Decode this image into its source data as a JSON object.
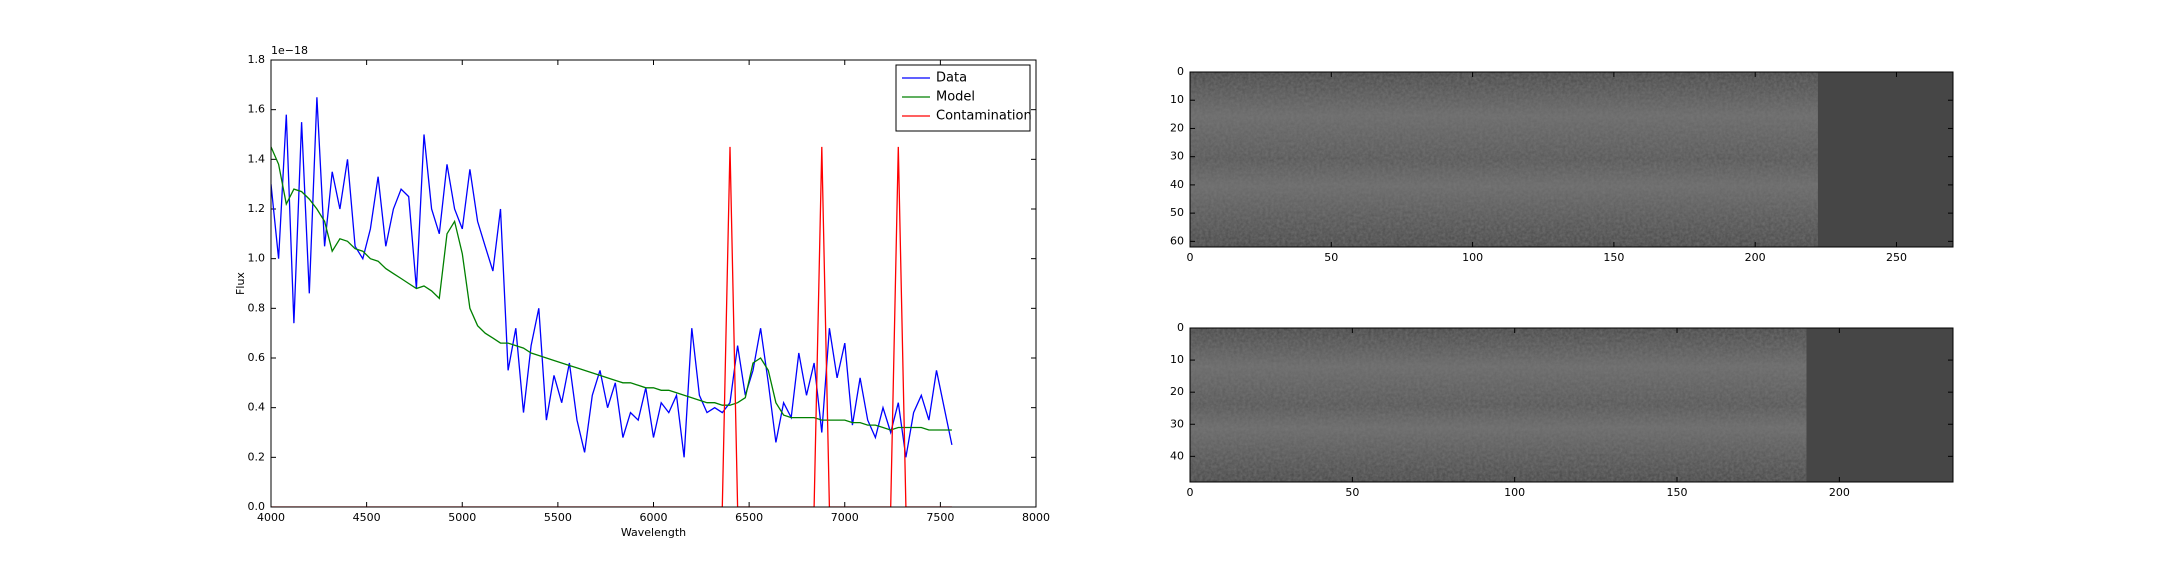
{
  "chart_data": [
    {
      "type": "line",
      "xlabel": "Wavelength",
      "ylabel": "Flux",
      "y_offset_text": "1e−18",
      "xlim": [
        4000,
        8000
      ],
      "xticks": [
        4000,
        4500,
        5000,
        5500,
        6000,
        6500,
        7000,
        7500,
        8000
      ],
      "ylim": [
        0,
        1.8
      ],
      "yticks": [
        {
          "value": 0,
          "label": "0.0"
        },
        {
          "value": 0.2,
          "label": "0.2"
        },
        {
          "value": 0.4,
          "label": "0.4"
        },
        {
          "value": 0.6,
          "label": "0.6"
        },
        {
          "value": 0.8,
          "label": "0.8"
        },
        {
          "value": 1,
          "label": "1.0"
        },
        {
          "value": 1.2,
          "label": "1.2"
        },
        {
          "value": 1.4,
          "label": "1.4"
        },
        {
          "value": 1.6,
          "label": "1.6"
        },
        {
          "value": 1.8,
          "label": "1.8"
        }
      ],
      "legend": "upper right",
      "x": [
        4000,
        4040,
        4080,
        4120,
        4160,
        4200,
        4240,
        4280,
        4320,
        4360,
        4400,
        4440,
        4480,
        4520,
        4560,
        4600,
        4640,
        4680,
        4720,
        4760,
        4800,
        4840,
        4880,
        4920,
        4960,
        5000,
        5040,
        5080,
        5120,
        5160,
        5200,
        5240,
        5280,
        5320,
        5360,
        5400,
        5440,
        5480,
        5520,
        5560,
        5600,
        5640,
        5680,
        5720,
        5760,
        5800,
        5840,
        5880,
        5920,
        5960,
        6000,
        6040,
        6080,
        6120,
        6160,
        6200,
        6240,
        6280,
        6320,
        6360,
        6400,
        6440,
        6480,
        6520,
        6560,
        6600,
        6640,
        6680,
        6720,
        6760,
        6800,
        6840,
        6880,
        6920,
        6960,
        7000,
        7040,
        7080,
        7120,
        7160,
        7200,
        7240,
        7280,
        7320,
        7360,
        7400,
        7440,
        7480,
        7520,
        7560
      ],
      "series": [
        {
          "name": "Data",
          "color": "#0000ff",
          "values": [
            1.3,
            1.0,
            1.58,
            0.74,
            1.55,
            0.86,
            1.65,
            1.05,
            1.35,
            1.2,
            1.4,
            1.05,
            1.0,
            1.12,
            1.33,
            1.05,
            1.2,
            1.28,
            1.25,
            0.88,
            1.5,
            1.2,
            1.1,
            1.38,
            1.2,
            1.12,
            1.36,
            1.15,
            1.05,
            0.95,
            1.2,
            0.55,
            0.72,
            0.38,
            0.65,
            0.8,
            0.35,
            0.53,
            0.42,
            0.58,
            0.35,
            0.22,
            0.45,
            0.55,
            0.4,
            0.5,
            0.28,
            0.38,
            0.35,
            0.48,
            0.28,
            0.42,
            0.38,
            0.45,
            0.2,
            0.72,
            0.45,
            0.38,
            0.4,
            0.38,
            0.42,
            0.65,
            0.45,
            0.55,
            0.72,
            0.5,
            0.26,
            0.42,
            0.36,
            0.62,
            0.45,
            0.58,
            0.3,
            0.72,
            0.52,
            0.66,
            0.33,
            0.52,
            0.35,
            0.28,
            0.4,
            0.3,
            0.42,
            0.2,
            0.38,
            0.45,
            0.35,
            0.55,
            0.4,
            0.25
          ]
        },
        {
          "name": "Model",
          "color": "#008000",
          "values": [
            1.45,
            1.38,
            1.22,
            1.28,
            1.27,
            1.24,
            1.2,
            1.15,
            1.03,
            1.08,
            1.07,
            1.04,
            1.03,
            1.0,
            0.99,
            0.96,
            0.94,
            0.92,
            0.9,
            0.88,
            0.89,
            0.87,
            0.84,
            1.1,
            1.15,
            1.02,
            0.8,
            0.73,
            0.7,
            0.68,
            0.66,
            0.66,
            0.65,
            0.64,
            0.62,
            0.61,
            0.6,
            0.59,
            0.58,
            0.57,
            0.56,
            0.55,
            0.54,
            0.53,
            0.52,
            0.51,
            0.5,
            0.5,
            0.49,
            0.48,
            0.48,
            0.47,
            0.47,
            0.46,
            0.45,
            0.44,
            0.43,
            0.42,
            0.42,
            0.41,
            0.41,
            0.42,
            0.44,
            0.58,
            0.6,
            0.55,
            0.42,
            0.37,
            0.36,
            0.36,
            0.36,
            0.36,
            0.35,
            0.35,
            0.35,
            0.35,
            0.34,
            0.34,
            0.33,
            0.33,
            0.32,
            0.31,
            0.32,
            0.32,
            0.32,
            0.32,
            0.31,
            0.31,
            0.31,
            0.31
          ]
        },
        {
          "name": "Contamination",
          "color": "#ff0000",
          "values": [
            0,
            0,
            0,
            0,
            0,
            0,
            0,
            0,
            0,
            0,
            0,
            0,
            0,
            0,
            0,
            0,
            0,
            0,
            0,
            0,
            0,
            0,
            0,
            0,
            0,
            0,
            0,
            0,
            0,
            0,
            0,
            0,
            0,
            0,
            0,
            0,
            0,
            0,
            0,
            0,
            0,
            0,
            0,
            0,
            0,
            0,
            0,
            0,
            0,
            0,
            0,
            0,
            0,
            0,
            0,
            0,
            0,
            0,
            0,
            0,
            1.45,
            0,
            0,
            0,
            0,
            0,
            0,
            0,
            0,
            0,
            0,
            0,
            1.45,
            0,
            0,
            0,
            0,
            0,
            0,
            0,
            0,
            0,
            1.45,
            0,
            0,
            0,
            0,
            0,
            0,
            0
          ]
        }
      ]
    },
    {
      "type": "image",
      "xlim": [
        0,
        270
      ],
      "xticks": [
        0,
        50,
        100,
        150,
        200,
        250
      ],
      "ylim": [
        62,
        0
      ],
      "yticks": [
        0,
        10,
        20,
        30,
        40,
        50,
        60
      ]
    },
    {
      "type": "image",
      "xlim": [
        0,
        235
      ],
      "xticks": [
        0,
        50,
        100,
        150,
        200
      ],
      "ylim": [
        48,
        0
      ],
      "yticks": [
        0,
        10,
        20,
        30,
        40
      ]
    }
  ]
}
